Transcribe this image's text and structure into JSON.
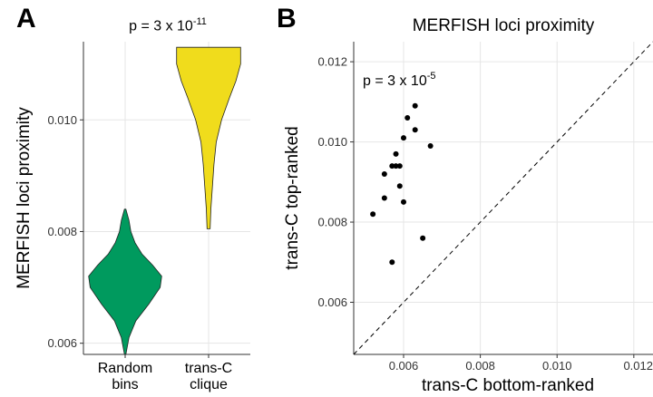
{
  "panels": {
    "a": {
      "letter": "A",
      "pvalue": {
        "prefix": "p = 3 x 10",
        "exponent": "-11"
      }
    },
    "b": {
      "letter": "B",
      "pvalue": {
        "prefix": "p = 3 x 10",
        "exponent": "-5"
      }
    }
  },
  "colors": {
    "random": "#009a5e",
    "clique": "#f0dc1c",
    "grid": "#e6e6e6",
    "point": "#000000"
  },
  "chart_data": [
    {
      "type": "violin",
      "title": "",
      "ylabel": "MERFISH loci proximity",
      "ylim": [
        0.0058,
        0.0114
      ],
      "yticks": [
        0.006,
        0.008,
        0.01
      ],
      "ytick_labels": [
        "0.006",
        "0.008",
        "0.010"
      ],
      "categories": [
        {
          "label_lines": [
            "Random",
            "bins"
          ],
          "color_key": "random",
          "min": 0.0058,
          "max": 0.0084,
          "profile": [
            [
              0.0058,
              0.02
            ],
            [
              0.0061,
              0.1
            ],
            [
              0.0064,
              0.28
            ],
            [
              0.0067,
              0.62
            ],
            [
              0.007,
              0.92
            ],
            [
              0.0072,
              0.96
            ],
            [
              0.0074,
              0.72
            ],
            [
              0.0076,
              0.44
            ],
            [
              0.0078,
              0.26
            ],
            [
              0.008,
              0.15
            ],
            [
              0.0082,
              0.1
            ],
            [
              0.0084,
              0.02
            ]
          ]
        },
        {
          "label_lines": [
            "trans-C",
            "clique"
          ],
          "color_key": "clique",
          "min": 0.00805,
          "max": 0.0113,
          "profile": [
            [
              0.00805,
              0.04
            ],
            [
              0.0084,
              0.06
            ],
            [
              0.0088,
              0.1
            ],
            [
              0.0092,
              0.14
            ],
            [
              0.0096,
              0.2
            ],
            [
              0.01,
              0.34
            ],
            [
              0.0104,
              0.55
            ],
            [
              0.0107,
              0.72
            ],
            [
              0.011,
              0.84
            ],
            [
              0.0113,
              0.84
            ]
          ]
        }
      ]
    },
    {
      "type": "scatter",
      "title": "MERFISH loci proximity",
      "xlabel": "trans-C bottom-ranked",
      "ylabel": "trans-C top-ranked",
      "xlim": [
        0.0047,
        0.0125
      ],
      "ylim": [
        0.0047,
        0.0125
      ],
      "xticks": [
        0.006,
        0.008,
        0.01,
        0.012
      ],
      "xtick_labels": [
        "0.006",
        "0.008",
        "0.010",
        "0.012"
      ],
      "yticks": [
        0.006,
        0.008,
        0.01,
        0.012
      ],
      "ytick_labels": [
        "0.006",
        "0.008",
        "0.010",
        "0.012"
      ],
      "identity_line": true,
      "points": [
        {
          "x": 0.0063,
          "y": 0.0109
        },
        {
          "x": 0.0061,
          "y": 0.0106
        },
        {
          "x": 0.0063,
          "y": 0.0103
        },
        {
          "x": 0.006,
          "y": 0.0101
        },
        {
          "x": 0.0067,
          "y": 0.0099
        },
        {
          "x": 0.0058,
          "y": 0.0097
        },
        {
          "x": 0.0057,
          "y": 0.0094
        },
        {
          "x": 0.0058,
          "y": 0.0094
        },
        {
          "x": 0.0059,
          "y": 0.0094
        },
        {
          "x": 0.0055,
          "y": 0.0092
        },
        {
          "x": 0.0059,
          "y": 0.0089
        },
        {
          "x": 0.0055,
          "y": 0.0086
        },
        {
          "x": 0.006,
          "y": 0.0085
        },
        {
          "x": 0.0052,
          "y": 0.0082
        },
        {
          "x": 0.0065,
          "y": 0.0076
        },
        {
          "x": 0.0057,
          "y": 0.007
        }
      ]
    }
  ]
}
